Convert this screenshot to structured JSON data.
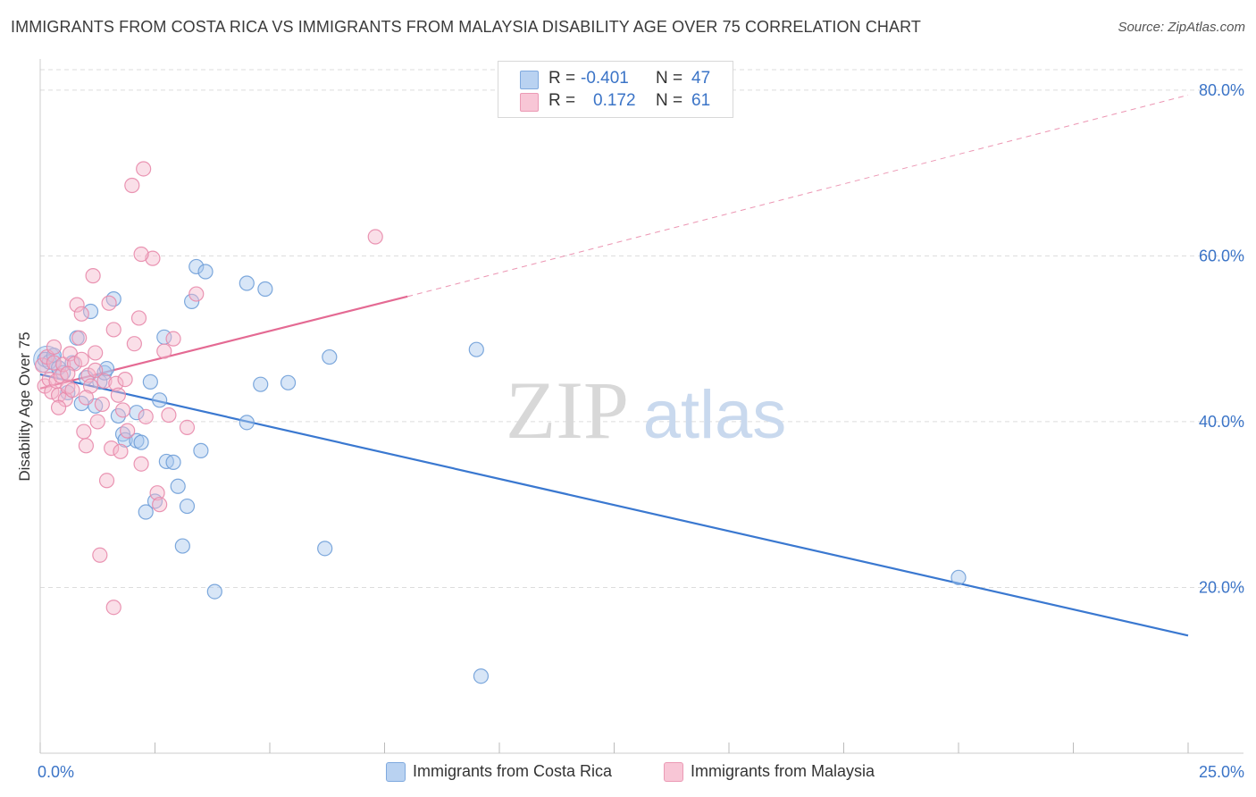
{
  "title": "IMMIGRANTS FROM COSTA RICA VS IMMIGRANTS FROM MALAYSIA DISABILITY AGE OVER 75 CORRELATION CHART",
  "source": "Source: ZipAtlas.com",
  "watermark": {
    "zip": "ZIP",
    "atlas": "atlas"
  },
  "legend": {
    "rows": [
      {
        "r_label": "R =",
        "r_value": "-0.401",
        "n_label": "N =",
        "n_value": "47"
      },
      {
        "r_label": "R =",
        "r_value": "0.172",
        "n_label": "N =",
        "n_value": "61"
      }
    ]
  },
  "colors": {
    "blue_fill": "#a9c8ee",
    "blue_stroke": "#6f9fd8",
    "blue_line": "#3a78d0",
    "pink_fill": "#f5b8cc",
    "pink_stroke": "#e88aab",
    "pink_line": "#e46a93",
    "axis_text": "#3b74c7",
    "grid": "#dcdcdc"
  },
  "chart_data": {
    "type": "scatter",
    "title": "IMMIGRANTS FROM COSTA RICA VS IMMIGRANTS FROM MALAYSIA DISABILITY AGE OVER 75 CORRELATION CHART",
    "xlabel": "",
    "ylabel": "Disability Age Over 75",
    "xlim": [
      0,
      25
    ],
    "ylim": [
      0,
      83
    ],
    "x_tick_labels": [
      "0.0%",
      "25.0%"
    ],
    "y_ticks": [
      20,
      40,
      60,
      80
    ],
    "y_tick_labels": [
      "20.0%",
      "40.0%",
      "60.0%",
      "80.0%"
    ],
    "grid": true,
    "series": [
      {
        "name": "Immigrants from Costa Rica",
        "color": "#a9c8ee",
        "r": -0.401,
        "n": 47,
        "trend": {
          "x": [
            0,
            25
          ],
          "y": [
            45.7,
            14.2
          ],
          "dashed_from_x": null
        },
        "points": [
          [
            0.1,
            47.5
          ],
          [
            0.2,
            47.2
          ],
          [
            0.3,
            48.0
          ],
          [
            0.4,
            46.5
          ],
          [
            0.5,
            45.9
          ],
          [
            0.6,
            43.5
          ],
          [
            0.7,
            47.1
          ],
          [
            0.8,
            50.1
          ],
          [
            0.9,
            42.2
          ],
          [
            1.0,
            45.3
          ],
          [
            1.1,
            53.3
          ],
          [
            1.2,
            41.9
          ],
          [
            1.3,
            44.8
          ],
          [
            1.4,
            45.9
          ],
          [
            1.45,
            46.4
          ],
          [
            1.6,
            54.8
          ],
          [
            1.7,
            40.7
          ],
          [
            1.8,
            38.5
          ],
          [
            1.85,
            37.8
          ],
          [
            2.1,
            41.1
          ],
          [
            2.1,
            37.7
          ],
          [
            2.2,
            37.5
          ],
          [
            2.3,
            29.1
          ],
          [
            2.4,
            44.8
          ],
          [
            2.5,
            30.4
          ],
          [
            2.6,
            42.6
          ],
          [
            2.7,
            50.2
          ],
          [
            2.75,
            35.2
          ],
          [
            2.9,
            35.1
          ],
          [
            3.0,
            32.2
          ],
          [
            3.1,
            25.0
          ],
          [
            3.2,
            29.8
          ],
          [
            3.3,
            54.5
          ],
          [
            3.4,
            58.7
          ],
          [
            3.5,
            36.5
          ],
          [
            3.6,
            58.1
          ],
          [
            3.8,
            19.5
          ],
          [
            4.5,
            39.9
          ],
          [
            4.5,
            56.7
          ],
          [
            4.8,
            44.5
          ],
          [
            4.9,
            56.0
          ],
          [
            5.4,
            44.7
          ],
          [
            6.2,
            24.7
          ],
          [
            6.3,
            47.8
          ],
          [
            9.5,
            48.7
          ],
          [
            9.6,
            9.3
          ],
          [
            20.0,
            21.2
          ]
        ]
      },
      {
        "name": "Immigrants from Malaysia",
        "color": "#f5b8cc",
        "r": 0.172,
        "n": 61,
        "trend": {
          "x": [
            0,
            8.0,
            25
          ],
          "y": [
            44.0,
            55.1,
            79.4
          ],
          "dashed_from_x": 8.0
        },
        "points": [
          [
            0.05,
            46.8
          ],
          [
            0.1,
            44.3
          ],
          [
            0.15,
            47.8
          ],
          [
            0.2,
            45.1
          ],
          [
            0.25,
            43.6
          ],
          [
            0.3,
            47.1
          ],
          [
            0.35,
            44.9
          ],
          [
            0.4,
            43.2
          ],
          [
            0.45,
            45.5
          ],
          [
            0.5,
            46.9
          ],
          [
            0.55,
            42.7
          ],
          [
            0.6,
            44.2
          ],
          [
            0.65,
            48.2
          ],
          [
            0.7,
            43.8
          ],
          [
            0.75,
            47.0
          ],
          [
            0.8,
            54.1
          ],
          [
            0.85,
            50.1
          ],
          [
            0.9,
            53.0
          ],
          [
            0.95,
            38.8
          ],
          [
            1.0,
            37.1
          ],
          [
            1.05,
            45.6
          ],
          [
            1.1,
            44.3
          ],
          [
            1.15,
            57.6
          ],
          [
            1.2,
            48.3
          ],
          [
            1.25,
            40.0
          ],
          [
            1.3,
            23.9
          ],
          [
            1.35,
            42.1
          ],
          [
            1.4,
            44.9
          ],
          [
            1.45,
            32.9
          ],
          [
            1.5,
            54.3
          ],
          [
            1.55,
            36.8
          ],
          [
            1.6,
            51.1
          ],
          [
            1.65,
            44.6
          ],
          [
            1.7,
            43.2
          ],
          [
            1.75,
            36.4
          ],
          [
            1.8,
            41.4
          ],
          [
            1.9,
            38.9
          ],
          [
            2.0,
            68.5
          ],
          [
            2.05,
            49.4
          ],
          [
            2.15,
            52.5
          ],
          [
            2.2,
            34.9
          ],
          [
            2.25,
            70.5
          ],
          [
            2.3,
            40.6
          ],
          [
            2.45,
            59.7
          ],
          [
            2.55,
            31.4
          ],
          [
            2.7,
            48.5
          ],
          [
            2.8,
            40.8
          ],
          [
            2.9,
            50.0
          ],
          [
            3.2,
            39.3
          ],
          [
            3.4,
            55.4
          ],
          [
            1.6,
            17.6
          ],
          [
            2.2,
            60.2
          ],
          [
            0.9,
            47.5
          ],
          [
            1.0,
            42.9
          ],
          [
            0.6,
            45.8
          ],
          [
            7.3,
            62.3
          ],
          [
            0.3,
            49.0
          ],
          [
            2.6,
            30.0
          ],
          [
            1.2,
            46.2
          ],
          [
            0.4,
            41.7
          ],
          [
            1.85,
            45.1
          ]
        ]
      }
    ]
  },
  "bottom_legend": [
    {
      "label": "Immigrants from Costa Rica"
    },
    {
      "label": "Immigrants from Malaysia"
    }
  ]
}
